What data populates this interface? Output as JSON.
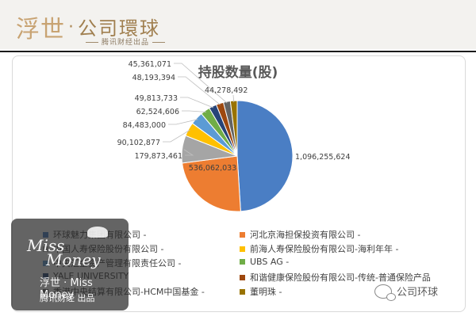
{
  "header": {
    "brand_script": "浮世",
    "brand_dot": "·",
    "brand_main": "公司環球",
    "brand_sub": "腾讯财经出品"
  },
  "chart_data": {
    "type": "pie",
    "title": "持股数量(股)",
    "slices": [
      {
        "label": "环球魅力集团有限公司",
        "value": 1096255624,
        "value_label": "1,096,255,624",
        "color": "#4a7ec4"
      },
      {
        "label": "河北京海担保投资有限公司",
        "value": 536062033,
        "value_label": "536,062,033",
        "color": "#ed7d31"
      },
      {
        "label": "中国人寿保险股份有限公司",
        "value": 179873461,
        "value_label": "179,873,461",
        "color": "#a5a5a5"
      },
      {
        "label": "前海人寿保险股份有限公司-海利年年",
        "value": 90102877,
        "value_label": "90,102,877",
        "color": "#ffc000"
      },
      {
        "label": "中央汇金资产管理有限责任公司",
        "value": 84483000,
        "value_label": "84,483,000",
        "color": "#5b9bd5"
      },
      {
        "label": "UBS AG",
        "value": 62524606,
        "value_label": "62,524,606",
        "color": "#70ad47"
      },
      {
        "label": "YALE UNIVERSITY",
        "value": 49813733,
        "value_label": "49,813,733",
        "color": "#264478"
      },
      {
        "label": "和谐健康保险股份有限公司-传统-普通保险产品",
        "value": 48193394,
        "value_label": "48,193,394",
        "color": "#9e480e"
      },
      {
        "label": "香港中央结算有限公司-HCM中国基金",
        "value": 45361071,
        "value_label": "45,361,071",
        "color": "#636363"
      },
      {
        "label": "董明珠",
        "value": 44278492,
        "value_label": "44,278,492",
        "color": "#997300"
      }
    ],
    "legend_position": "bottom"
  },
  "legend_text": [
    "环球魅力集团有限公司 -",
    "河北京海担保投资有限公司 -",
    "中国人寿保险股份有限公司 -",
    "前海人寿保险股份有限公司-海利年年 -",
    "中央汇金资产管理有限责任公司 -",
    "UBS AG -",
    "YALE UNIVERSITY",
    "和谐健康保险股份有限公司-传统-普通保险产品",
    "香港中央结算有限公司-HCM中国基金 -",
    "董明珠 -"
  ],
  "overlay": {
    "line1": "Miss",
    "line2": "Money",
    "line3": "浮世 · Miss Money",
    "line4": "腾讯财经 出品"
  },
  "wechat": {
    "label": "公司环球"
  }
}
